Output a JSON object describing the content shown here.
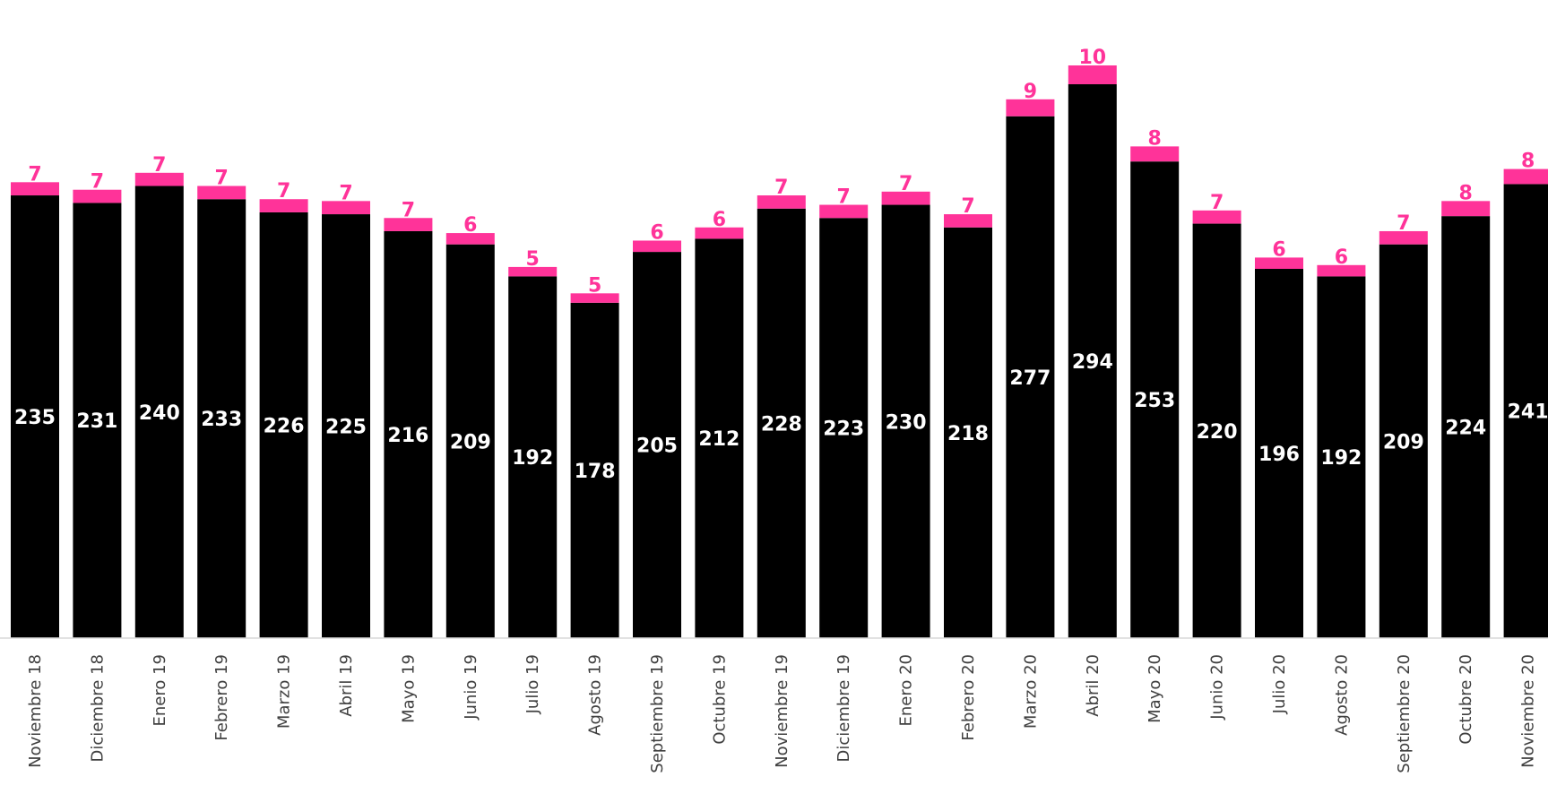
{
  "chart_data": {
    "type": "bar",
    "stacked": true,
    "categories": [
      "Noviembre 18",
      "Diciembre 18",
      "Enero 19",
      "Febrero 19",
      "Marzo 19",
      "Abril 19",
      "Mayo 19",
      "Junio 19",
      "Julio 19",
      "Agosto 19",
      "Septiembre 19",
      "Octubre 19",
      "Noviembre 19",
      "Diciembre 19",
      "Enero 20",
      "Febrero 20",
      "Marzo 20",
      "Abril 20",
      "Mayo 20",
      "Junio 20",
      "Julio 20",
      "Agosto 20",
      "Septiembre 20",
      "Octubre 20",
      "Noviembre 20"
    ],
    "series": [
      {
        "color": "#000000",
        "label_color": "#ffffff",
        "label_position": "center",
        "values": [
          235,
          231,
          240,
          233,
          226,
          225,
          216,
          209,
          192,
          178,
          205,
          212,
          228,
          223,
          230,
          218,
          277,
          294,
          253,
          220,
          196,
          192,
          209,
          224,
          241
        ]
      },
      {
        "color": "#ff3399",
        "label_color": "#ff3399",
        "label_position": "above",
        "values": [
          7,
          7,
          7,
          7,
          7,
          7,
          7,
          6,
          5,
          5,
          6,
          6,
          7,
          7,
          7,
          7,
          9,
          10,
          8,
          7,
          6,
          6,
          7,
          8,
          8
        ]
      }
    ],
    "ylim": [
      0,
      300
    ],
    "grid": false,
    "legend": "none",
    "title": "",
    "xlabel": "",
    "ylabel": ""
  }
}
